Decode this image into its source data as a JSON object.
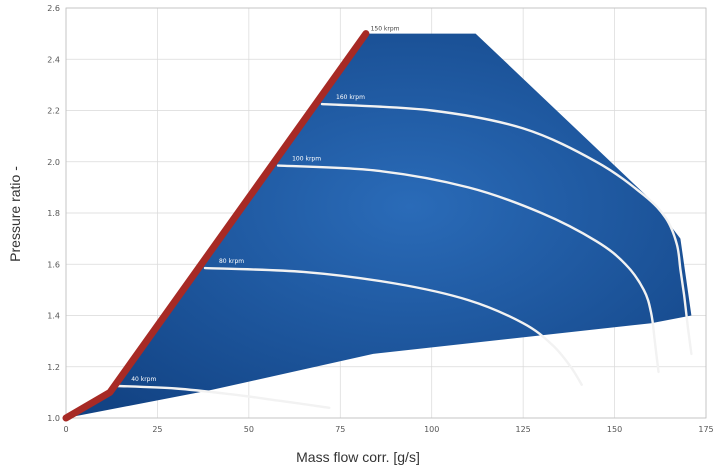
{
  "chart_data": {
    "type": "line",
    "title": "",
    "xlabel": "Mass flow corr. [g/s]",
    "ylabel": "Pressure ratio -",
    "xlim": [
      0,
      175
    ],
    "ylim": [
      1.0,
      2.6
    ],
    "grid": true,
    "x_ticks": [
      "0",
      "25",
      "50",
      "75",
      "100",
      "125",
      "150",
      "175"
    ],
    "y_ticks": [
      "1.0",
      "1.2",
      "1.4",
      "1.6",
      "1.8",
      "2.0",
      "2.2",
      "2.4",
      "2.6"
    ],
    "colors": {
      "map_fill": "#1f5aa6",
      "map_fill_dark": "#0f3a78",
      "surge_line": "#a72a25",
      "speed_lines": "#f2f2f2",
      "grid": "#d9d9d9"
    },
    "map_boundary": {
      "x": [
        0,
        12,
        82,
        94,
        112,
        160,
        168,
        171,
        160,
        84,
        40,
        0
      ],
      "y": [
        1.0,
        1.1,
        2.5,
        2.5,
        2.5,
        1.85,
        1.7,
        1.4,
        1.37,
        1.25,
        1.11,
        1.0
      ]
    },
    "surge_line": {
      "x": [
        0,
        12,
        82
      ],
      "y": [
        1.0,
        1.1,
        2.5
      ]
    },
    "series": [
      {
        "name": "40 krpm",
        "x": [
          14,
          30,
          45,
          58,
          72
        ],
        "y": [
          1.125,
          1.115,
          1.093,
          1.068,
          1.04
        ]
      },
      {
        "name": "80 krpm",
        "x": [
          38,
          65,
          90,
          110,
          125,
          133,
          138,
          141
        ],
        "y": [
          1.585,
          1.57,
          1.525,
          1.46,
          1.37,
          1.285,
          1.2,
          1.13
        ]
      },
      {
        "name": "100 krpm",
        "x": [
          58,
          85,
          110,
          130,
          145,
          153,
          158,
          160,
          161,
          162
        ],
        "y": [
          1.985,
          1.965,
          1.9,
          1.8,
          1.69,
          1.6,
          1.5,
          1.41,
          1.3,
          1.18
        ]
      },
      {
        "name": "160 krpm",
        "x": [
          70,
          100,
          125,
          145,
          158,
          164,
          167,
          168,
          169,
          170,
          171
        ],
        "y": [
          2.225,
          2.2,
          2.13,
          2.0,
          1.87,
          1.78,
          1.68,
          1.58,
          1.48,
          1.36,
          1.25
        ]
      }
    ],
    "top_label": "150 krpm",
    "top_label_point": {
      "x": 80,
      "y": 2.5
    }
  }
}
